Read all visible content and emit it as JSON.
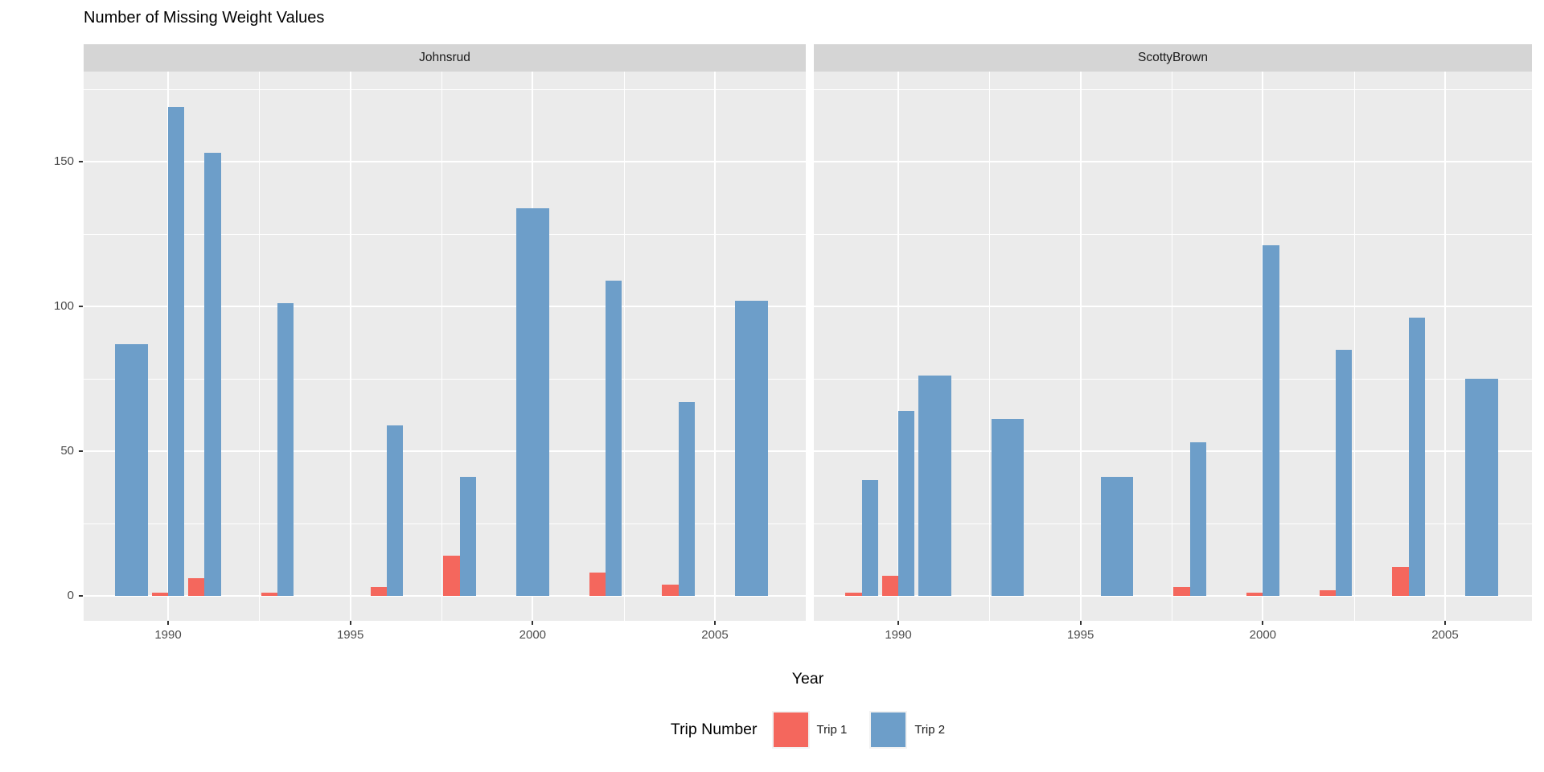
{
  "title": "Number of Missing Weight Values",
  "x_axis_title": "Year",
  "legend": {
    "title": "Trip Number",
    "items": [
      {
        "label": "Trip 1",
        "color": "#F4675D"
      },
      {
        "label": "Trip 2",
        "color": "#6D9EC9"
      }
    ]
  },
  "colors": {
    "trip1": "#F4675D",
    "trip2": "#6D9EC9",
    "panel_bg": "#EBEBEB",
    "strip_bg": "#D5D5D5",
    "grid": "#FFFFFF",
    "tick_label": "#4D4D4D",
    "text": "#000000",
    "legend_key_bg": "#F2F2F2"
  },
  "chart_data": {
    "type": "bar",
    "title": "Number of Missing Weight Values",
    "xlabel": "Year",
    "ylabel": "",
    "ylim": [
      0,
      180
    ],
    "y_ticks": [
      0,
      50,
      100,
      150
    ],
    "x_ticks": [
      1990,
      1995,
      2000,
      2005
    ],
    "grid": true,
    "legend_position": "bottom",
    "bar_layout": "dodged; when a year has only Trip 2 the bar is drawn full width",
    "facets": [
      {
        "name": "Johnsrud",
        "categories": [
          1989,
          1990,
          1991,
          1993,
          1996,
          1998,
          2000,
          2002,
          2004,
          2006
        ],
        "series": [
          {
            "name": "Trip 1",
            "values": [
              null,
              1,
              6,
              1,
              3,
              14,
              null,
              8,
              4,
              null
            ]
          },
          {
            "name": "Trip 2",
            "values": [
              87,
              169,
              153,
              101,
              59,
              41,
              134,
              109,
              67,
              102
            ]
          }
        ]
      },
      {
        "name": "ScottyBrown",
        "categories": [
          1989,
          1990,
          1991,
          1993,
          1996,
          1998,
          2000,
          2002,
          2004,
          2006
        ],
        "series": [
          {
            "name": "Trip 1",
            "values": [
              1,
              7,
              null,
              null,
              null,
              3,
              1,
              2,
              10,
              null
            ]
          },
          {
            "name": "Trip 2",
            "values": [
              40,
              64,
              76,
              61,
              41,
              53,
              121,
              85,
              96,
              75
            ]
          }
        ]
      }
    ]
  }
}
